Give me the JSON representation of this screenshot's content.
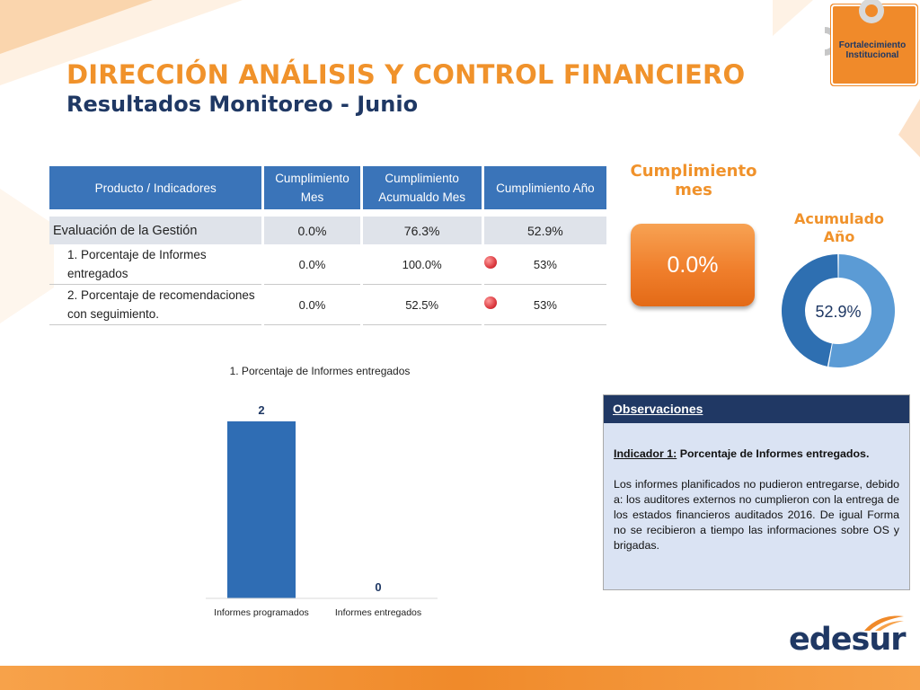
{
  "header": {
    "title": "DIRECCIÓN ANÁLISIS Y CONTROL FINANCIERO",
    "subtitle": "Resultados Monitoreo - Junio"
  },
  "badge": {
    "line1": "Fortalecimiento",
    "line2": "Institucional"
  },
  "table": {
    "headers": {
      "product": "Producto / Indicadores",
      "month_l1": "Cumplimiento",
      "month_l2": "Mes",
      "accum_l1": "Cumplimiento",
      "accum_l2": "Acumualdo Mes",
      "year": "Cumplimiento Año"
    },
    "summary": {
      "label": "Evaluación de la Gestión",
      "month": "0.0%",
      "accum": "76.3%",
      "year": "52.9%"
    },
    "rows": [
      {
        "label_l1": "1. Porcentaje de Informes",
        "label_l2": "entregados",
        "month": "0.0%",
        "accum": "100.0%",
        "year": "53%",
        "status": "red"
      },
      {
        "label_l1": "2. Porcentaje de recomendaciones",
        "label_l2": "con seguimiento.",
        "month": "0.0%",
        "accum": "52.5%",
        "year": "53%",
        "status": "red"
      }
    ]
  },
  "cumplimiento_mes": {
    "label_l1": "Cumplimiento",
    "label_l2": "mes",
    "value": "0.0%"
  },
  "acumulado_anio": {
    "label_l1": "Acumulado",
    "label_l2": "Año",
    "value": "52.9%",
    "fraction": 0.529
  },
  "chart_data": {
    "type": "bar",
    "title": "1. Porcentaje de Informes entregados",
    "categories": [
      "Informes programados",
      "Informes entregados"
    ],
    "values": [
      2,
      0
    ],
    "data_labels": [
      "2",
      "0"
    ],
    "ylim": [
      0,
      2
    ],
    "grid": false,
    "legend": "none",
    "colors": {
      "bar": "#2f6db4",
      "label": "#1f3864"
    }
  },
  "observaciones": {
    "title": "Observaciones",
    "indicator_label": "Indicador 1:",
    "indicator_name": "Porcentaje de Informes entregados.",
    "text": "Los informes planificados no pudieron entregarse, debido a: los auditores externos no cumplieron con la entrega de los estados financieros auditados 2016. De igual Forma no se recibieron a tiempo las informaciones sobre OS y brigadas."
  },
  "logo": {
    "text": "edesur"
  },
  "colors": {
    "accent_orange": "#f0922b",
    "navy": "#1f3864",
    "table_header": "#3a74b9",
    "donut_light": "#5b9bd5",
    "donut_dark": "#2e6fb1",
    "status_red": "#d9343a"
  }
}
